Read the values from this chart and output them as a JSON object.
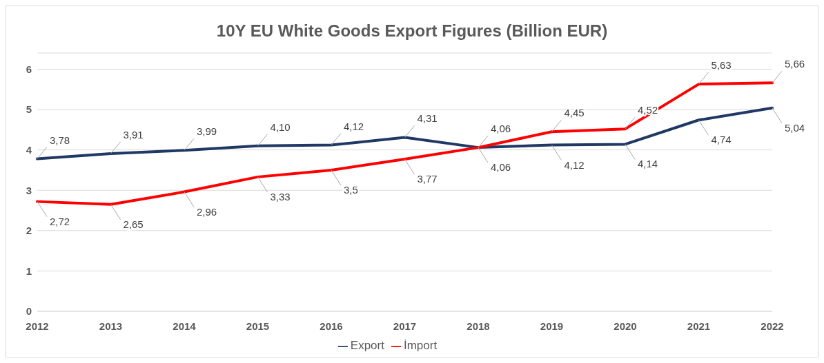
{
  "chart_data": {
    "type": "line",
    "title": "10Y EU White Goods Export Figures (Billion EUR)",
    "categories": [
      "2012",
      "2013",
      "2014",
      "2015",
      "2016",
      "2017",
      "2018",
      "2019",
      "2020",
      "2021",
      "2022"
    ],
    "series": [
      {
        "name": "Export",
        "color": "#1f3864",
        "values": [
          3.78,
          3.91,
          3.99,
          4.1,
          4.12,
          4.31,
          4.06,
          4.12,
          4.14,
          4.74,
          5.04
        ],
        "value_labels": [
          "3,78",
          "3,91",
          "3,99",
          "4,10",
          "4,12",
          "4,31",
          "4,06",
          "4,12",
          "4,14",
          "4,74",
          "5,04"
        ]
      },
      {
        "name": "İmport",
        "color": "#ff0000",
        "values": [
          2.72,
          2.65,
          2.96,
          3.33,
          3.5,
          3.77,
          4.06,
          4.45,
          4.52,
          5.63,
          5.66
        ],
        "value_labels": [
          "2,72",
          "2,65",
          "2,96",
          "3,33",
          "3,5",
          "3,77",
          "4,06",
          "4,45",
          "4,52",
          "5,63",
          "5,66"
        ]
      }
    ],
    "ylim": [
      0,
      6.4
    ],
    "yticks": [
      0,
      1,
      2,
      3,
      4,
      5,
      6
    ],
    "grid": "y",
    "legend": "bottom",
    "marker": "none",
    "line_style": "solid"
  }
}
